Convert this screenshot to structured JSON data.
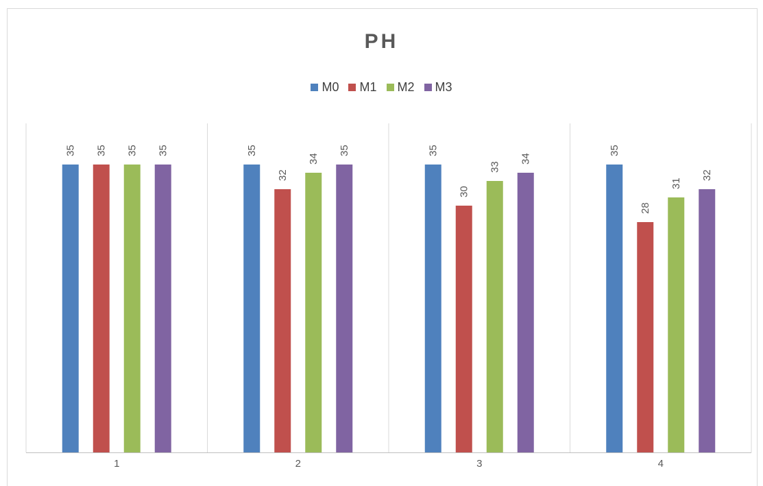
{
  "chart_data": {
    "type": "bar",
    "title": "PH",
    "categories": [
      "1",
      "2",
      "3",
      "4"
    ],
    "series": [
      {
        "name": "M0",
        "color": "#4F81BD",
        "values": [
          35,
          35,
          35,
          35
        ]
      },
      {
        "name": "M1",
        "color": "#C0504D",
        "values": [
          35,
          32,
          30,
          28
        ]
      },
      {
        "name": "M2",
        "color": "#9BBB59",
        "values": [
          35,
          34,
          33,
          31
        ]
      },
      {
        "name": "M3",
        "color": "#8064A2",
        "values": [
          35,
          35,
          34,
          32
        ]
      }
    ],
    "xlabel": "",
    "ylabel": "",
    "ylim": [
      0,
      40
    ],
    "grid": "vertical category separators",
    "legend": "top",
    "data_labels": "rotated above bars"
  }
}
